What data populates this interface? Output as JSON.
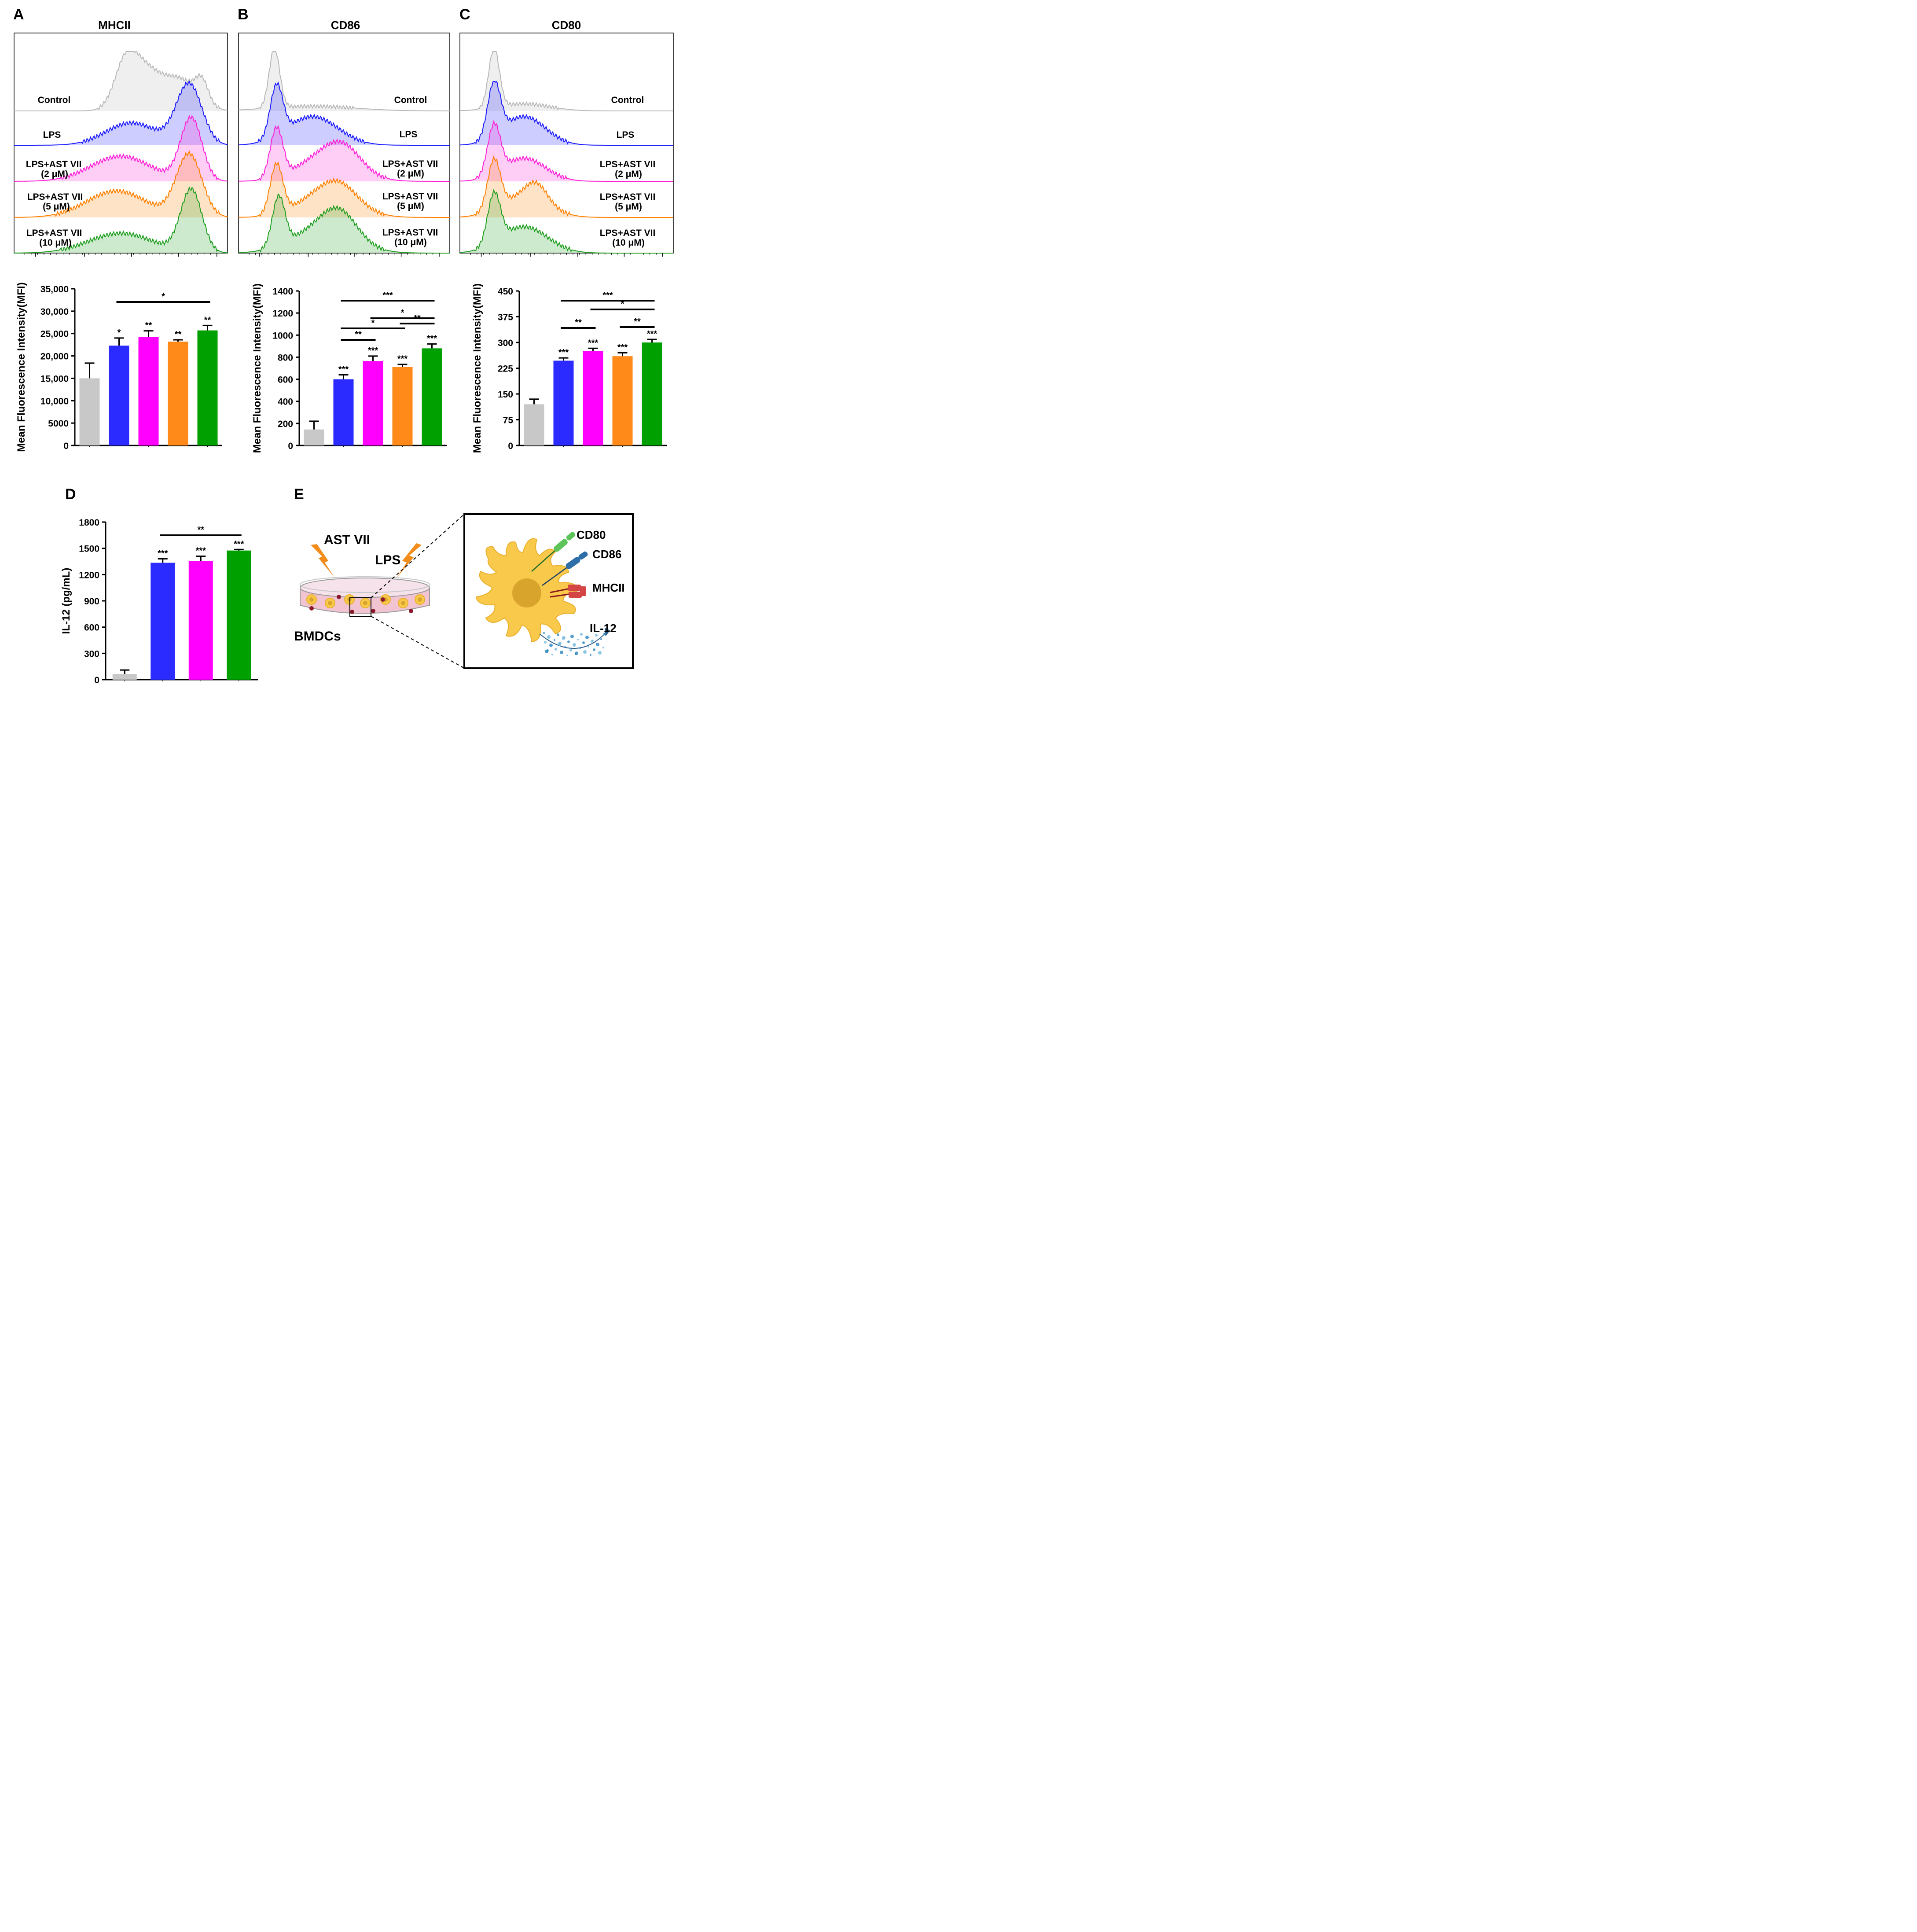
{
  "panel_letters": [
    "A",
    "B",
    "C",
    "D",
    "E"
  ],
  "colors": {
    "control": "#c8c8c8",
    "lps": "#2b2bff",
    "ast2": "#ff00ff",
    "ast5": "#ff8a1a",
    "ast10": "#00a000",
    "hist_control": "#b8b8b8",
    "hist_lps": "#1a1aff",
    "hist_ast2": "#ff20d8",
    "hist_ast5": "#ff8000",
    "hist_ast10": "#1e9e1e"
  },
  "histograms": {
    "group_labels": [
      {
        "line1": "Control",
        "line2": ""
      },
      {
        "line1": "LPS",
        "line2": ""
      },
      {
        "line1": "LPS+AST VII",
        "line2": "(2 μM)"
      },
      {
        "line1": "LPS+AST VII",
        "line2": "(5 μM)"
      },
      {
        "line1": "LPS+AST VII",
        "line2": "(10 μM)"
      }
    ],
    "panels": [
      {
        "letter": "A",
        "title": "MHCII"
      },
      {
        "letter": "B",
        "title": "CD86"
      },
      {
        "letter": "C",
        "title": "CD80"
      }
    ]
  },
  "chart_data": [
    {
      "type": "bar",
      "panel": "A",
      "ylabel": "Mean Fluorescence Intensity(MFI)",
      "categories": [
        "Control",
        "LPS",
        "LPS+AST VII (2 μM)",
        "LPS+AST VII (5 μM)",
        "LPS+AST VII (10 μM)"
      ],
      "values": [
        15000,
        22300,
        24200,
        23200,
        25700
      ],
      "errors": [
        3400,
        1700,
        1400,
        400,
        1100
      ],
      "ylim": [
        0,
        35000
      ],
      "yticks": [
        0,
        5000,
        10000,
        15000,
        20000,
        25000,
        30000,
        35000
      ],
      "ytick_labels": [
        "0",
        "5000",
        "10,000",
        "15,000",
        "20,000",
        "25,000",
        "30,000",
        "35,000"
      ],
      "significance": [
        "",
        "*",
        "**",
        "**",
        "**"
      ],
      "brackets": [
        {
          "from": 1,
          "to": 4,
          "label": "*"
        }
      ]
    },
    {
      "type": "bar",
      "panel": "B",
      "ylabel": "Mean Fluorescence Intensity(MFI)",
      "categories": [
        "Control",
        "LPS",
        "LPS+AST VII (2 μM)",
        "LPS+AST VII (5 μM)",
        "LPS+AST VII (10 μM)"
      ],
      "values": [
        145,
        600,
        765,
        710,
        880
      ],
      "errors": [
        75,
        40,
        45,
        25,
        40
      ],
      "ylim": [
        0,
        1400
      ],
      "yticks": [
        0,
        200,
        400,
        600,
        800,
        1000,
        1200,
        1400
      ],
      "ytick_labels": [
        "0",
        "200",
        "400",
        "600",
        "800",
        "1000",
        "1200",
        "1400"
      ],
      "significance": [
        "",
        "***",
        "***",
        "***",
        "***"
      ],
      "brackets": [
        {
          "from": 1,
          "to": 4,
          "label": "***"
        },
        {
          "from": 2,
          "to": 4,
          "label": "*"
        },
        {
          "from": 3,
          "to": 4,
          "label": "**"
        },
        {
          "from": 1,
          "to": 3,
          "label": "*"
        },
        {
          "from": 1,
          "to": 2,
          "label": "**"
        }
      ]
    },
    {
      "type": "bar",
      "panel": "C",
      "ylabel": "Mean Fluorescence Intensity(MFI)",
      "categories": [
        "Control",
        "LPS",
        "LPS+AST VII (2 μM)",
        "LPS+AST VII (5 μM)",
        "LPS+AST VII (10 μM)"
      ],
      "values": [
        120,
        247,
        275,
        260,
        300
      ],
      "errors": [
        15,
        8,
        8,
        10,
        9
      ],
      "ylim": [
        0,
        450
      ],
      "yticks": [
        0,
        75,
        150,
        225,
        300,
        375,
        450
      ],
      "ytick_labels": [
        "0",
        "75",
        "150",
        "225",
        "300",
        "375",
        "450"
      ],
      "significance": [
        "",
        "***",
        "***",
        "***",
        "***"
      ],
      "brackets": [
        {
          "from": 1,
          "to": 4,
          "label": "***"
        },
        {
          "from": 2,
          "to": 4,
          "label": "*"
        },
        {
          "from": 3,
          "to": 4,
          "label": "**"
        },
        {
          "from": 1,
          "to": 2,
          "label": "**"
        }
      ]
    },
    {
      "type": "bar",
      "panel": "D",
      "ylabel": "IL-12 (pg/mL)",
      "categories": [
        "Control",
        "LPS",
        "LPS+AST VII (2 μM)",
        "LPS+AST VII (10 μM)"
      ],
      "values": [
        65,
        1335,
        1355,
        1475
      ],
      "errors": [
        45,
        45,
        55,
        12
      ],
      "ylim": [
        0,
        1800
      ],
      "yticks": [
        0,
        300,
        600,
        900,
        1200,
        1500,
        1800
      ],
      "ytick_labels": [
        "0",
        "300",
        "600",
        "900",
        "1200",
        "1500",
        "1800"
      ],
      "significance": [
        "",
        "***",
        "***",
        "***"
      ],
      "brackets": [
        {
          "from": 1,
          "to": 3,
          "label": "**"
        }
      ]
    }
  ],
  "schematic": {
    "stimulus1": "AST VII",
    "stimulus2": "LPS",
    "dish_label": "BMDCs",
    "markers": [
      "CD80",
      "CD86",
      "MHCII"
    ],
    "cytokine": "IL-12"
  }
}
